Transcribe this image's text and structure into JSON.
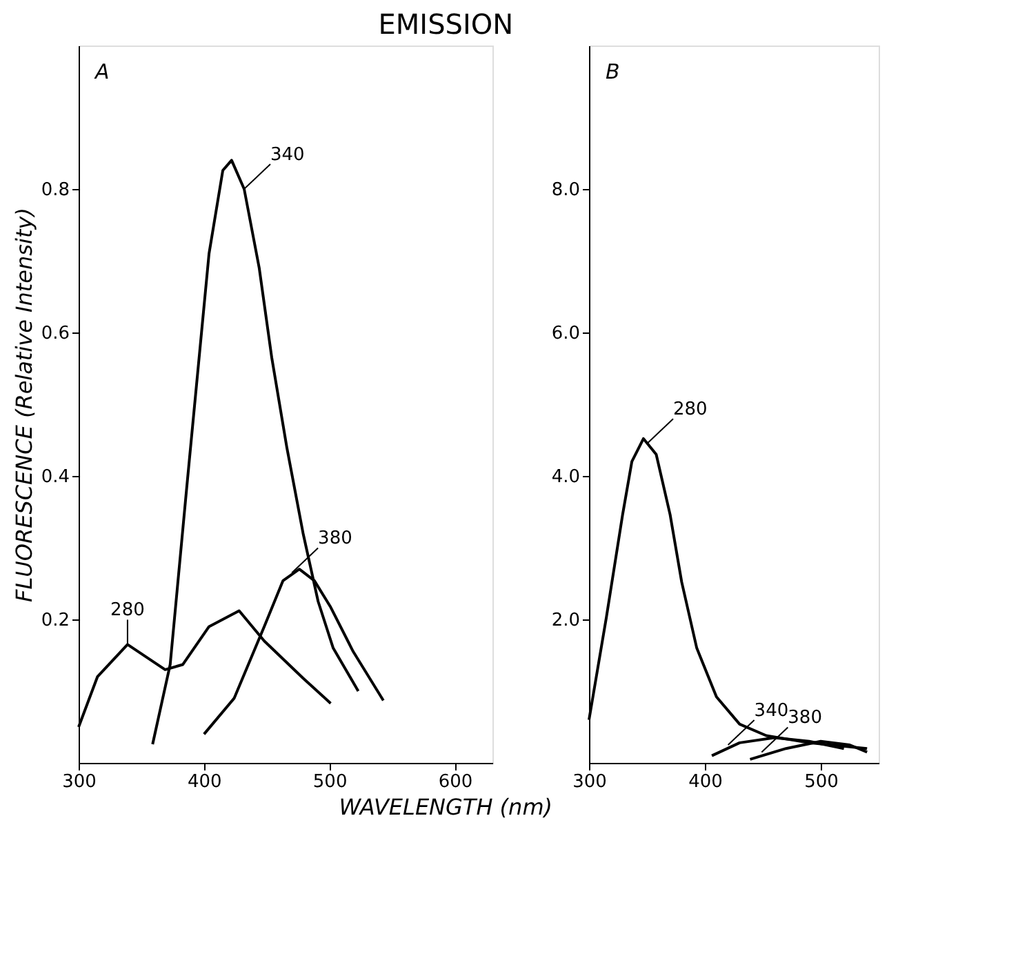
{
  "chart_data": [
    {
      "type": "line",
      "title": "EMISSION",
      "xlabel": "WAVELENGTH (nm)",
      "ylabel": "FLUORESCENCE  (Relative Intensity)",
      "xlim": [
        300,
        630
      ],
      "xticks": [
        300,
        400,
        500,
        600
      ],
      "ylim": [
        0,
        1.0
      ],
      "yticks": [
        0.2,
        0.4,
        0.6,
        0.8
      ],
      "grid": false,
      "series": [
        {
          "color": "#000000",
          "x": [
            300,
            315,
            339,
            369,
            383,
            404,
            428,
            448,
            479,
            501
          ],
          "values": [
            0.05,
            0.12,
            0.165,
            0.13,
            0.137,
            0.19,
            0.212,
            0.17,
            0.118,
            0.083
          ]
        },
        {
          "color": "#000000",
          "x": [
            359,
            373,
            386,
            398,
            404,
            415,
            422,
            432,
            444,
            454,
            466,
            479,
            491,
            503,
            523
          ],
          "values": [
            0.026,
            0.137,
            0.38,
            0.6,
            0.71,
            0.826,
            0.84,
            0.8,
            0.69,
            0.565,
            0.44,
            0.32,
            0.225,
            0.16,
            0.1
          ]
        },
        {
          "color": "#000000",
          "x": [
            400,
            424,
            448,
            463,
            476,
            488,
            501,
            519,
            543
          ],
          "values": [
            0.04,
            0.09,
            0.19,
            0.254,
            0.27,
            0.254,
            0.217,
            0.155,
            0.087
          ]
        }
      ],
      "annotations": [
        "A",
        {
          "text": "280",
          "x": 339,
          "y": 0.165
        },
        {
          "text": "340",
          "x": 432,
          "y": 0.8
        },
        {
          "text": "380",
          "x": 470,
          "y": 0.265
        }
      ]
    },
    {
      "type": "line",
      "xlim": [
        300,
        550
      ],
      "xticks": [
        300,
        400,
        500
      ],
      "ylim": [
        0,
        10
      ],
      "yticks": [
        {
          "value": 2,
          "label": "2.0"
        },
        {
          "value": 4,
          "label": "4.0"
        },
        {
          "value": 6,
          "label": "6.0"
        },
        {
          "value": 8,
          "label": "8.0"
        }
      ],
      "grid": false,
      "series": [
        {
          "color": "#000000",
          "x": [
            300,
            315,
            329,
            337,
            347,
            358,
            370,
            380,
            393,
            410,
            430,
            453,
            490,
            540
          ],
          "values": [
            0.6,
            2.03,
            3.46,
            4.2,
            4.52,
            4.3,
            3.46,
            2.52,
            1.6,
            0.92,
            0.54,
            0.38,
            0.28,
            0.2
          ]
        },
        {
          "color": "#000000",
          "x": [
            406,
            430,
            460,
            490,
            520
          ],
          "values": [
            0.1,
            0.28,
            0.35,
            0.3,
            0.2
          ]
        },
        {
          "color": "#000000",
          "x": [
            439,
            470,
            500,
            525,
            540
          ],
          "values": [
            0.05,
            0.2,
            0.3,
            0.25,
            0.15
          ]
        }
      ],
      "annotations": [
        "B",
        {
          "text": "280",
          "x": 350,
          "y": 4.45
        },
        {
          "text": "340",
          "x": 420,
          "y": 0.25
        },
        {
          "text": "380",
          "x": 449,
          "y": 0.15
        }
      ]
    }
  ]
}
